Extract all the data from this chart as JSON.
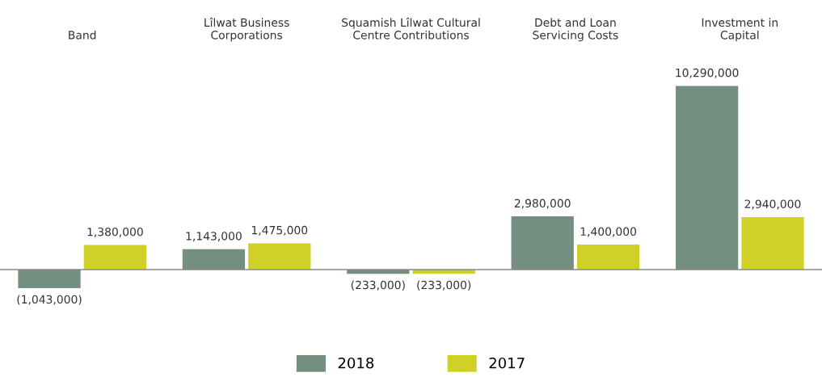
{
  "chart_data": {
    "type": "bar",
    "categories": [
      "Band",
      "Lîlwat Business\nCorporations",
      "Squamish Lîlwat Cultural\nCentre Contributions",
      "Debt and Loan\nServicing Costs",
      "Investment in\nCapital"
    ],
    "series": [
      {
        "name": "2018",
        "color": "#748f7f",
        "values": [
          -1043000,
          1143000,
          -233000,
          2980000,
          10290000
        ],
        "value_labels": [
          "(1,043,000)",
          "1,143,000",
          "(233,000)",
          "2,980,000",
          "10,290,000"
        ]
      },
      {
        "name": "2017",
        "color": "#d0d128",
        "values": [
          1380000,
          1475000,
          -233000,
          1400000,
          2940000
        ],
        "value_labels": [
          "1,380,000",
          "1,475,000",
          "(233,000)",
          "1,400,000",
          "2,940,000"
        ]
      }
    ],
    "legend": "bottom",
    "grid": false
  }
}
